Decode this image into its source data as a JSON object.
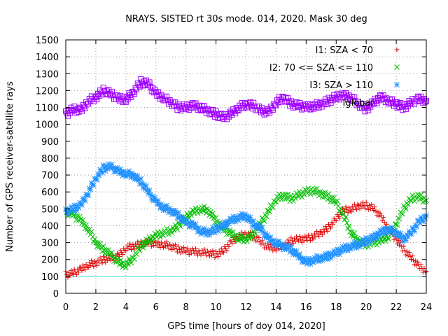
{
  "chart_data": {
    "type": "scatter",
    "title": "NRAYS. SISTED rt 30s mode. 014, 2020. Mask 30 deg",
    "xlabel": "GPS time [hours of doy 014, 2020]",
    "ylabel": "Number of GPS receiver-satellite rays",
    "xlim": [
      0,
      24
    ],
    "ylim": [
      0,
      1500
    ],
    "xticks": [
      "0",
      "2",
      "4",
      "6",
      "8",
      "10",
      "12",
      "14",
      "16",
      "18",
      "20",
      "22",
      "24"
    ],
    "yticks": [
      "0",
      "100",
      "200",
      "300",
      "400",
      "500",
      "600",
      "700",
      "800",
      "900",
      "1000",
      "1100",
      "1200",
      "1300",
      "1400",
      "1500"
    ],
    "grid": true,
    "legend_position": "top-right",
    "reference_line": {
      "y": 100,
      "color": "#40e0d0"
    },
    "series": [
      {
        "name": "I1: SZA < 70",
        "marker": "plus",
        "color": "#e00000",
        "x": [
          0,
          0.5,
          1,
          1.5,
          2,
          2.5,
          3,
          3.5,
          4,
          4.5,
          5,
          5.5,
          6,
          6.5,
          7,
          7.5,
          8,
          8.5,
          9,
          9.5,
          10,
          10.5,
          11,
          11.5,
          12,
          12.5,
          13,
          13.5,
          14,
          14.5,
          15,
          15.5,
          16,
          16.5,
          17,
          17.5,
          18,
          18.5,
          19,
          19.5,
          20,
          20.5,
          21,
          21.5,
          22,
          22.5,
          23,
          23.5,
          24
        ],
        "values": [
          110,
          120,
          140,
          170,
          180,
          200,
          205,
          220,
          270,
          280,
          290,
          300,
          290,
          290,
          280,
          260,
          250,
          245,
          245,
          240,
          230,
          250,
          300,
          340,
          350,
          340,
          300,
          270,
          270,
          280,
          310,
          320,
          320,
          340,
          360,
          390,
          440,
          490,
          500,
          520,
          520,
          500,
          450,
          380,
          320,
          260,
          210,
          160,
          130
        ]
      },
      {
        "name": "I2: 70 <= SZA <= 110",
        "marker": "cross",
        "color": "#00c000",
        "x": [
          0,
          0.5,
          1,
          1.5,
          2,
          2.5,
          3,
          3.5,
          4,
          4.5,
          5,
          5.5,
          6,
          6.5,
          7,
          7.5,
          8,
          8.5,
          9,
          9.5,
          10,
          10.5,
          11,
          11.5,
          12,
          12.5,
          13,
          13.5,
          14,
          14.5,
          15,
          15.5,
          16,
          16.5,
          17,
          17.5,
          18,
          18.5,
          19,
          19.5,
          20,
          20.5,
          21,
          21.5,
          22,
          22.5,
          23,
          23.5,
          24
        ],
        "values": [
          480,
          470,
          430,
          380,
          300,
          260,
          230,
          180,
          170,
          210,
          280,
          310,
          340,
          360,
          370,
          400,
          450,
          480,
          500,
          490,
          430,
          380,
          350,
          330,
          320,
          350,
          420,
          480,
          560,
          580,
          560,
          580,
          600,
          610,
          590,
          570,
          540,
          460,
          360,
          310,
          290,
          300,
          310,
          340,
          410,
          500,
          560,
          570,
          550
        ]
      },
      {
        "name": "I3: SZA > 110",
        "marker": "star",
        "color": "#1e90ff",
        "x": [
          0,
          0.5,
          1,
          1.5,
          2,
          2.5,
          3,
          3.5,
          4,
          4.5,
          5,
          5.5,
          6,
          6.5,
          7,
          7.5,
          8,
          8.5,
          9,
          9.5,
          10,
          10.5,
          11,
          11.5,
          12,
          12.5,
          13,
          13.5,
          14,
          14.5,
          15,
          15.5,
          16,
          16.5,
          17,
          17.5,
          18,
          18.5,
          19,
          19.5,
          20,
          20.5,
          21,
          21.5,
          22,
          22.5,
          23,
          23.5,
          24
        ],
        "values": [
          480,
          500,
          520,
          600,
          680,
          740,
          750,
          720,
          710,
          700,
          660,
          600,
          540,
          510,
          490,
          460,
          420,
          400,
          370,
          360,
          380,
          400,
          430,
          450,
          460,
          410,
          380,
          320,
          300,
          280,
          260,
          220,
          180,
          200,
          210,
          220,
          240,
          260,
          280,
          290,
          310,
          330,
          360,
          380,
          360,
          320,
          360,
          420,
          460
        ]
      },
      {
        "name": "Iglobal",
        "marker": "square",
        "color": "#a000ff",
        "x": [
          0,
          0.5,
          1,
          1.5,
          2,
          2.5,
          3,
          3.5,
          4,
          4.5,
          5,
          5.5,
          6,
          6.5,
          7,
          7.5,
          8,
          8.5,
          9,
          9.5,
          10,
          10.5,
          11,
          11.5,
          12,
          12.5,
          13,
          13.5,
          14,
          14.5,
          15,
          15.5,
          16,
          16.5,
          17,
          17.5,
          18,
          18.5,
          19,
          19.5,
          20,
          20.5,
          21,
          21.5,
          22,
          22.5,
          23,
          23.5,
          24
        ],
        "values": [
          1060,
          1090,
          1080,
          1140,
          1160,
          1200,
          1180,
          1150,
          1150,
          1190,
          1250,
          1240,
          1180,
          1160,
          1130,
          1100,
          1100,
          1110,
          1100,
          1080,
          1060,
          1040,
          1060,
          1100,
          1120,
          1110,
          1080,
          1070,
          1130,
          1160,
          1120,
          1110,
          1100,
          1110,
          1120,
          1140,
          1160,
          1170,
          1160,
          1120,
          1090,
          1130,
          1160,
          1140,
          1120,
          1100,
          1130,
          1150,
          1140
        ]
      }
    ]
  }
}
